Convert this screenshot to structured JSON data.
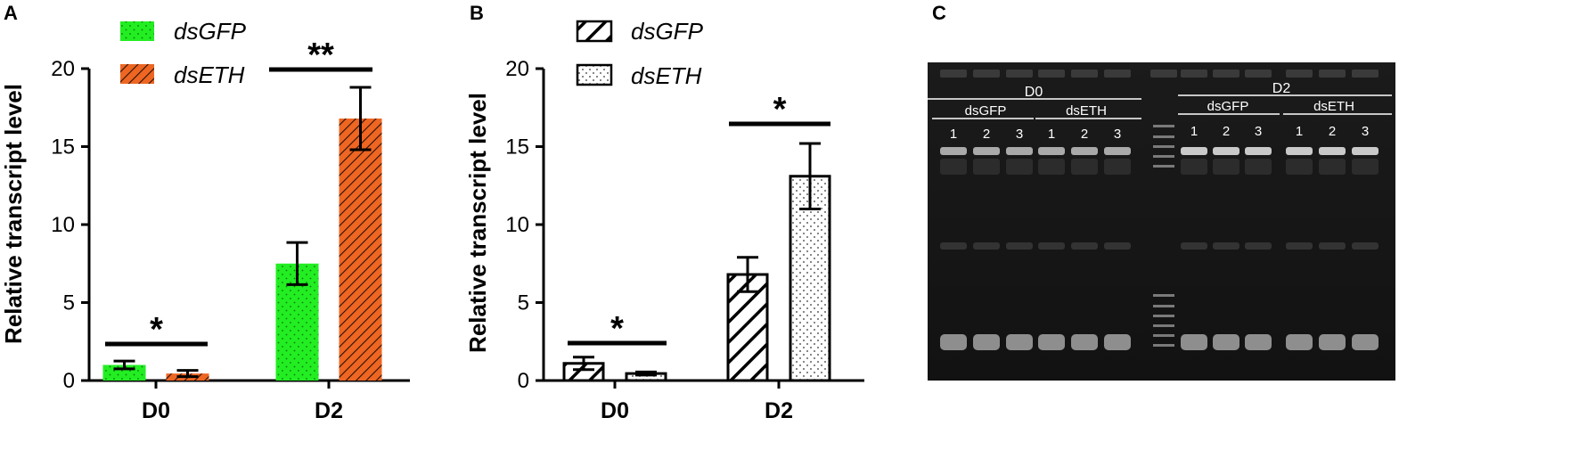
{
  "panels": {
    "a": {
      "letter": "A",
      "ylabel": "Relative transcript level",
      "legend": [
        "dsGFP",
        "dsETH"
      ]
    },
    "b": {
      "letter": "B",
      "ylabel": "Relative transcript level",
      "legend": [
        "dsGFP",
        "dsETH"
      ]
    },
    "c": {
      "letter": "C"
    }
  },
  "colors": {
    "dsGFP_A": "#22ee22",
    "dsETH_A": "#ee6622",
    "bars_B": "#ffffff",
    "gel_background": "#161616"
  },
  "chart_data": [
    {
      "panel": "A",
      "type": "bar",
      "categories": [
        "D0",
        "D2"
      ],
      "ylabel": "Relative transcript level",
      "ylim": [
        0,
        20
      ],
      "yticks": [
        0,
        5,
        10,
        15,
        20
      ],
      "legend_position": "top-left",
      "series": [
        {
          "name": "dsGFP",
          "values": [
            1.0,
            7.5
          ],
          "errors": [
            0.25,
            1.35
          ],
          "pattern": "dots",
          "color": "#22ee22"
        },
        {
          "name": "dsETH",
          "values": [
            0.45,
            16.8
          ],
          "errors": [
            0.2,
            2.0
          ],
          "pattern": "hatch",
          "color": "#ee6622"
        }
      ],
      "significance": [
        "*",
        "**"
      ]
    },
    {
      "panel": "B",
      "type": "bar",
      "categories": [
        "D0",
        "D2"
      ],
      "ylabel": "Relative transcript level",
      "ylim": [
        0,
        20
      ],
      "yticks": [
        0,
        5,
        10,
        15,
        20
      ],
      "legend_position": "top-left",
      "series": [
        {
          "name": "dsGFP",
          "values": [
            1.1,
            6.8
          ],
          "errors": [
            0.4,
            1.1
          ],
          "pattern": "hatch-wide",
          "color": "#ffffff"
        },
        {
          "name": "dsETH",
          "values": [
            0.45,
            13.1
          ],
          "errors": [
            0.1,
            2.1
          ],
          "pattern": "dots",
          "color": "#ffffff"
        }
      ],
      "significance": [
        "*",
        "*"
      ]
    }
  ],
  "gel": {
    "groups": [
      "D0",
      "D2"
    ],
    "subgroups": [
      "dsGFP",
      "dsETH",
      "dsGFP",
      "dsETH"
    ],
    "lane_numbers": [
      "1",
      "2",
      "3",
      "1",
      "2",
      "3",
      "1",
      "2",
      "3",
      "1",
      "2",
      "3"
    ]
  }
}
